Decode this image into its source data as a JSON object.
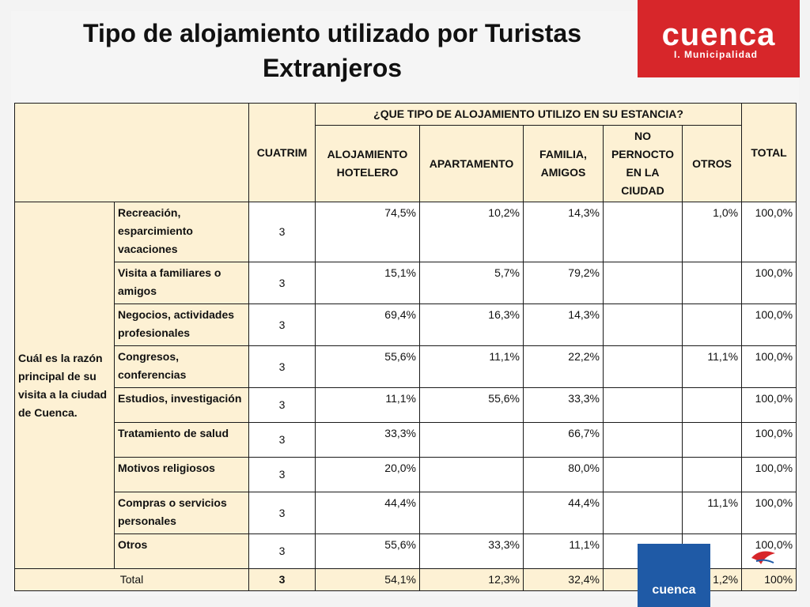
{
  "title": "Tipo de alojamiento utilizado por Turistas Extranjeros",
  "logo": {
    "word": "cuenca",
    "subtitle": "I. Municipalidad"
  },
  "bottom_logo_word": "cuenca",
  "table": {
    "header": {
      "cuatrim": "CUATRIM",
      "group": "¿QUE TIPO DE ALOJAMIENTO UTILIZO EN SU ESTANCIA?",
      "columns": [
        "ALOJAMIENTO HOTELERO",
        "APARTAMENTO",
        "FAMILIA, AMIGOS",
        "NO PERNOCTO EN LA CIUDAD",
        "OTROS"
      ],
      "total": "TOTAL"
    },
    "category": "Cuál es la razón principal de su visita a la ciudad de Cuenca.",
    "rows": [
      {
        "label": "Recreación, esparcimiento vacaciones",
        "cuatrim": "3",
        "hotel": "74,5%",
        "apto": "10,2%",
        "familia": "14,3%",
        "no_pernocto": "",
        "otros": "1,0%",
        "total": "100,0%"
      },
      {
        "label": "Visita a familiares o amigos",
        "cuatrim": "3",
        "hotel": "15,1%",
        "apto": "5,7%",
        "familia": "79,2%",
        "no_pernocto": "",
        "otros": "",
        "total": "100,0%"
      },
      {
        "label": "Negocios, actividades profesionales",
        "cuatrim": "3",
        "hotel": "69,4%",
        "apto": "16,3%",
        "familia": "14,3%",
        "no_pernocto": "",
        "otros": "",
        "total": "100,0%"
      },
      {
        "label": "Congresos, conferencias",
        "cuatrim": "3",
        "hotel": "55,6%",
        "apto": "11,1%",
        "familia": "22,2%",
        "no_pernocto": "",
        "otros": "11,1%",
        "total": "100,0%"
      },
      {
        "label": "Estudios, investigación",
        "cuatrim": "3",
        "hotel": "11,1%",
        "apto": "55,6%",
        "familia": "33,3%",
        "no_pernocto": "",
        "otros": "",
        "total": "100,0%"
      },
      {
        "label": "Tratamiento de salud",
        "cuatrim": "3",
        "hotel": "33,3%",
        "apto": "",
        "familia": "66,7%",
        "no_pernocto": "",
        "otros": "",
        "total": "100,0%"
      },
      {
        "label": "Motivos religiosos",
        "cuatrim": "3",
        "hotel": "20,0%",
        "apto": "",
        "familia": "80,0%",
        "no_pernocto": "",
        "otros": "",
        "total": "100,0%"
      },
      {
        "label": "Compras o servicios personales",
        "cuatrim": "3",
        "hotel": "44,4%",
        "apto": "",
        "familia": "44,4%",
        "no_pernocto": "",
        "otros": "11,1%",
        "total": "100,0%"
      },
      {
        "label": "Otros",
        "cuatrim": "3",
        "hotel": "55,6%",
        "apto": "33,3%",
        "familia": "11,1%",
        "no_pernocto": "",
        "otros": "",
        "total": "100,0%"
      }
    ],
    "total_row": {
      "label": "Total",
      "cuatrim": "3",
      "hotel": "54,1%",
      "apto": "12,3%",
      "familia": "32,4%",
      "no_pernocto": "",
      "otros": "1,2%",
      "total": "100%"
    }
  }
}
